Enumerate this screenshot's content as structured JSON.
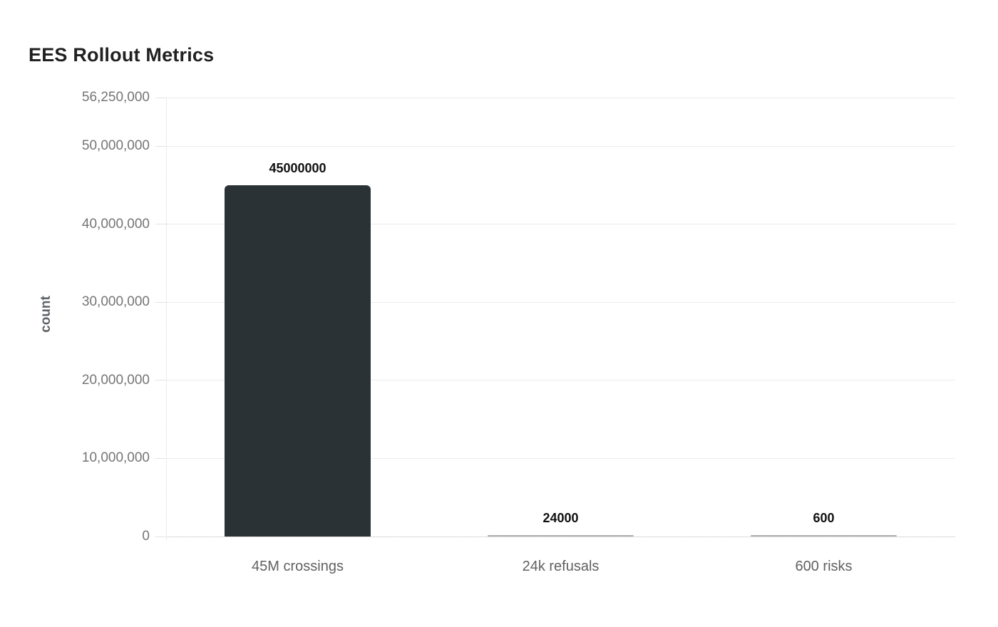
{
  "chart": {
    "title": "EES Rollout Metrics",
    "ylabel": "count"
  },
  "chart_data": {
    "type": "bar",
    "title": "EES Rollout Metrics",
    "xlabel": "",
    "ylabel": "count",
    "categories": [
      "45M crossings",
      "24k refusals",
      "600 risks"
    ],
    "values": [
      45000000,
      24000,
      600
    ],
    "bar_value_labels": [
      "45000000",
      "24000",
      "600"
    ],
    "ylim": [
      0,
      56250000
    ],
    "yticks": [
      {
        "value": 0,
        "label": "0"
      },
      {
        "value": 10000000,
        "label": "10,000,000"
      },
      {
        "value": 20000000,
        "label": "20,000,000"
      },
      {
        "value": 30000000,
        "label": "30,000,000"
      },
      {
        "value": 40000000,
        "label": "40,000,000"
      },
      {
        "value": 50000000,
        "label": "50,000,000"
      },
      {
        "value": 56250000,
        "label": "56,250,000"
      }
    ],
    "grid": "horizontal",
    "legend": "none",
    "colors": {
      "bar": "#2b3236",
      "gridline": "#ececec",
      "tick_text": "#757575",
      "category_text": "#616161",
      "value_label_text": "#111111",
      "title_text": "#212121",
      "axis_title_text": "#5f6368"
    }
  }
}
